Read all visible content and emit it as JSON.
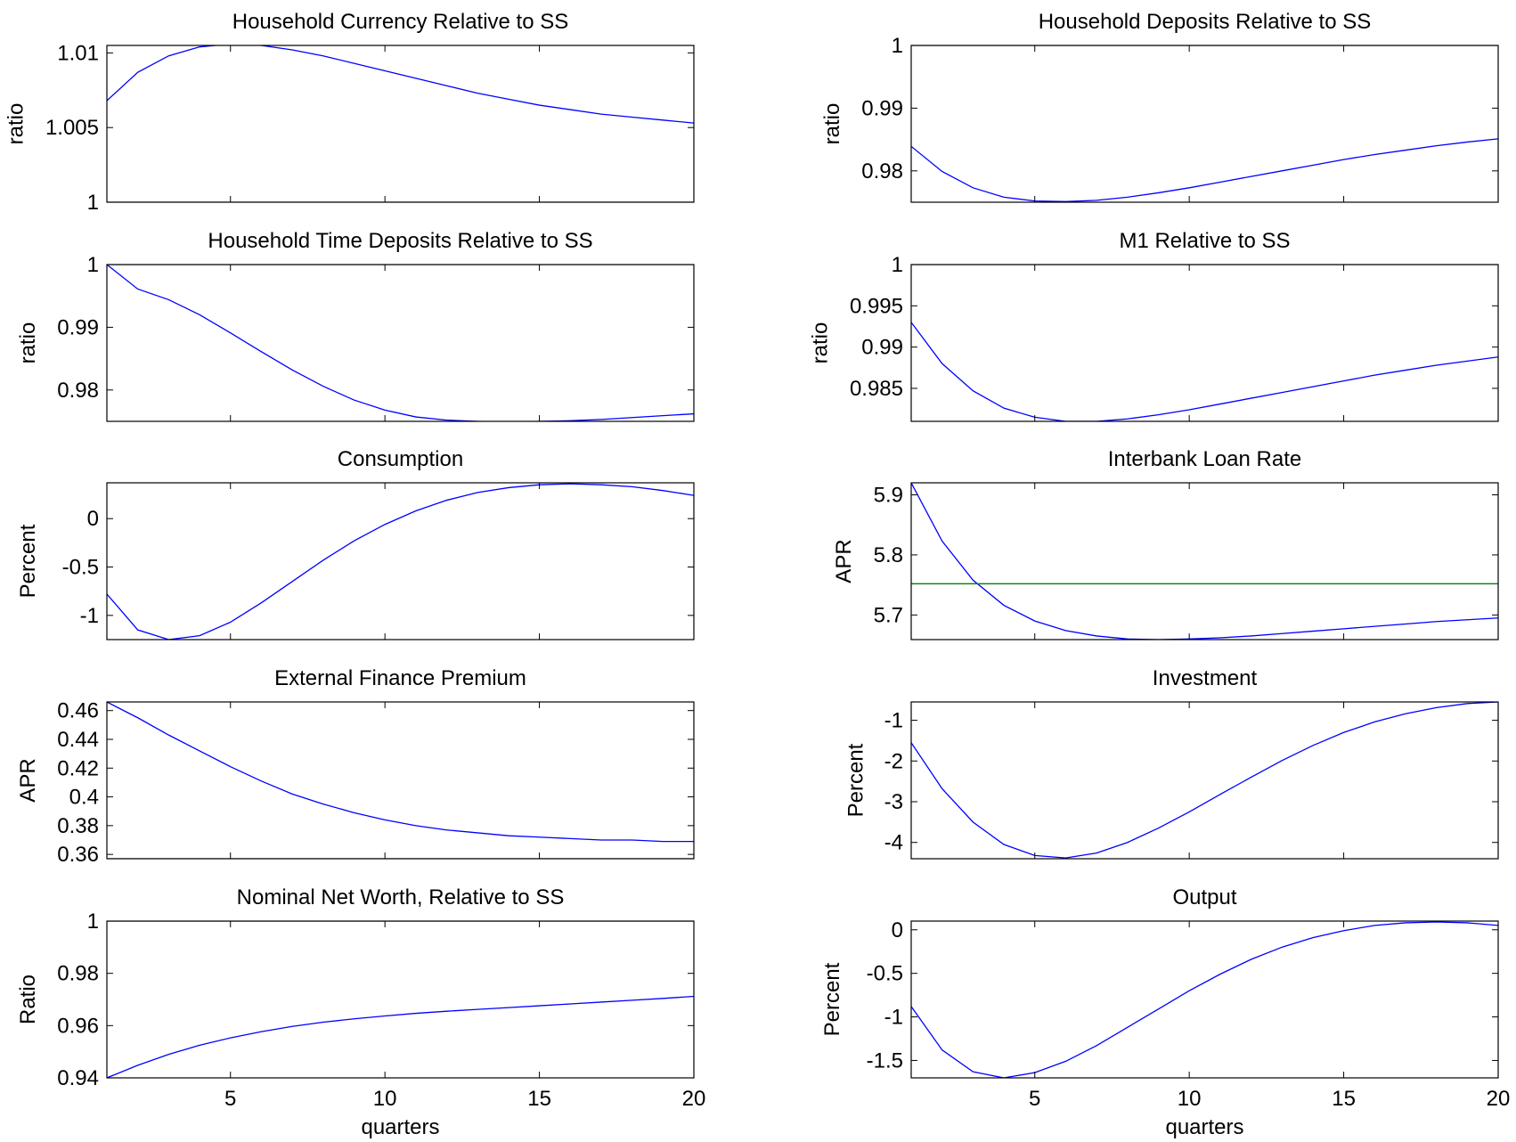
{
  "chart_data": [
    {
      "type": "line",
      "title": "Household Currency Relative to SS",
      "ylabel": "ratio",
      "xlabel": "",
      "xlim": [
        1,
        20
      ],
      "ylim": [
        1.0,
        1.0105
      ],
      "xticks": [
        5,
        10,
        15,
        20
      ],
      "yticks": [
        1,
        1.005,
        1.01
      ],
      "ytick_labels": [
        "1",
        "1.005",
        "1.01"
      ],
      "show_xtick_labels": false,
      "series": [
        {
          "color": "#0000ff",
          "x": [
            1,
            2,
            3,
            4,
            5,
            6,
            7,
            8,
            9,
            10,
            11,
            12,
            13,
            14,
            15,
            16,
            17,
            18,
            19,
            20
          ],
          "values": [
            1.0068,
            1.0087,
            1.0098,
            1.0104,
            1.0106,
            1.0105,
            1.0102,
            1.0098,
            1.0093,
            1.0088,
            1.0083,
            1.0078,
            1.0073,
            1.0069,
            1.0065,
            1.0062,
            1.0059,
            1.0057,
            1.0055,
            1.0053
          ]
        },
        {
          "color": "#008000",
          "x": [
            1,
            20
          ],
          "values": [
            1.0,
            1.0
          ]
        }
      ]
    },
    {
      "type": "line",
      "title": "Household Deposits Relative to SS",
      "ylabel": "ratio",
      "xlabel": "",
      "xlim": [
        1,
        20
      ],
      "ylim": [
        0.975,
        1.0
      ],
      "xticks": [
        5,
        10,
        15,
        20
      ],
      "yticks": [
        0.98,
        0.99,
        1
      ],
      "ytick_labels": [
        "0.98",
        "0.99",
        "1"
      ],
      "show_xtick_labels": false,
      "series": [
        {
          "color": "#0000ff",
          "x": [
            1,
            2,
            3,
            4,
            5,
            6,
            7,
            8,
            9,
            10,
            11,
            12,
            13,
            14,
            15,
            16,
            17,
            18,
            19,
            20
          ],
          "values": [
            0.9839,
            0.9799,
            0.9773,
            0.9758,
            0.9752,
            0.9751,
            0.9753,
            0.9758,
            0.9765,
            0.9773,
            0.9782,
            0.9791,
            0.98,
            0.9809,
            0.9818,
            0.9826,
            0.9833,
            0.984,
            0.9846,
            0.9851
          ]
        },
        {
          "color": "#008000",
          "x": [
            1,
            20
          ],
          "values": [
            1.0,
            1.0
          ]
        }
      ]
    },
    {
      "type": "line",
      "title": "Household Time Deposits Relative to SS",
      "ylabel": "ratio",
      "xlabel": "",
      "xlim": [
        1,
        20
      ],
      "ylim": [
        0.975,
        1.0
      ],
      "xticks": [
        5,
        10,
        15,
        20
      ],
      "yticks": [
        0.98,
        0.99,
        1
      ],
      "ytick_labels": [
        "0.98",
        "0.99",
        "1"
      ],
      "show_xtick_labels": false,
      "series": [
        {
          "color": "#0000ff",
          "x": [
            1,
            2,
            3,
            4,
            5,
            6,
            7,
            8,
            9,
            10,
            11,
            12,
            13,
            14,
            15,
            16,
            17,
            18,
            19,
            20
          ],
          "values": [
            1.0,
            0.9961,
            0.9944,
            0.992,
            0.9891,
            0.9861,
            0.9832,
            0.9806,
            0.9784,
            0.9768,
            0.9757,
            0.9752,
            0.975,
            0.9749,
            0.975,
            0.9751,
            0.9753,
            0.9756,
            0.9759,
            0.9762
          ]
        },
        {
          "color": "#008000",
          "x": [
            1,
            20
          ],
          "values": [
            1.0,
            1.0
          ]
        }
      ]
    },
    {
      "type": "line",
      "title": "M1 Relative to SS",
      "ylabel": "ratio",
      "xlabel": "",
      "xlim": [
        1,
        20
      ],
      "ylim": [
        0.981,
        1.0
      ],
      "xticks": [
        5,
        10,
        15,
        20
      ],
      "yticks": [
        0.985,
        0.99,
        0.995,
        1
      ],
      "ytick_labels": [
        "0.985",
        "0.99",
        "0.995",
        "1"
      ],
      "show_xtick_labels": false,
      "series": [
        {
          "color": "#0000ff",
          "x": [
            1,
            2,
            3,
            4,
            5,
            6,
            7,
            8,
            9,
            10,
            11,
            12,
            13,
            14,
            15,
            16,
            17,
            18,
            19,
            20
          ],
          "values": [
            0.993,
            0.988,
            0.9847,
            0.9826,
            0.9815,
            0.981,
            0.981,
            0.9813,
            0.9818,
            0.9824,
            0.9831,
            0.9838,
            0.9845,
            0.9852,
            0.9859,
            0.9866,
            0.9872,
            0.9878,
            0.9883,
            0.9888
          ]
        },
        {
          "color": "#008000",
          "x": [
            1,
            20
          ],
          "values": [
            1.0,
            1.0
          ]
        }
      ]
    },
    {
      "type": "line",
      "title": "Consumption",
      "ylabel": "Percent",
      "xlabel": "",
      "xlim": [
        1,
        20
      ],
      "ylim": [
        -1.25,
        0.37
      ],
      "xticks": [
        5,
        10,
        15,
        20
      ],
      "yticks": [
        -1,
        -0.5,
        0
      ],
      "ytick_labels": [
        "-1",
        "-0.5",
        "0"
      ],
      "show_xtick_labels": false,
      "series": [
        {
          "color": "#0000ff",
          "x": [
            1,
            2,
            3,
            4,
            5,
            6,
            7,
            8,
            9,
            10,
            11,
            12,
            13,
            14,
            15,
            16,
            17,
            18,
            19,
            20
          ],
          "values": [
            -0.78,
            -1.15,
            -1.25,
            -1.21,
            -1.07,
            -0.87,
            -0.65,
            -0.43,
            -0.23,
            -0.06,
            0.08,
            0.19,
            0.27,
            0.32,
            0.35,
            0.36,
            0.35,
            0.33,
            0.29,
            0.24
          ]
        }
      ]
    },
    {
      "type": "line",
      "title": "Interbank Loan Rate",
      "ylabel": "APR",
      "xlabel": "",
      "xlim": [
        1,
        20
      ],
      "ylim": [
        5.659,
        5.92
      ],
      "xticks": [
        5,
        10,
        15,
        20
      ],
      "yticks": [
        5.7,
        5.8,
        5.9
      ],
      "ytick_labels": [
        "5.7",
        "5.8",
        "5.9"
      ],
      "show_xtick_labels": false,
      "series": [
        {
          "color": "#0000ff",
          "x": [
            1,
            2,
            3,
            4,
            5,
            6,
            7,
            8,
            9,
            10,
            11,
            12,
            13,
            14,
            15,
            16,
            17,
            18,
            19,
            20
          ],
          "values": [
            5.92,
            5.823,
            5.758,
            5.716,
            5.69,
            5.674,
            5.665,
            5.66,
            5.659,
            5.66,
            5.662,
            5.665,
            5.669,
            5.673,
            5.677,
            5.681,
            5.685,
            5.689,
            5.692,
            5.695
          ]
        },
        {
          "color": "#008000",
          "x": [
            1,
            20
          ],
          "values": [
            5.752,
            5.752
          ]
        }
      ]
    },
    {
      "type": "line",
      "title": "External Finance Premium",
      "ylabel": "APR",
      "xlabel": "",
      "xlim": [
        1,
        20
      ],
      "ylim": [
        0.357,
        0.466
      ],
      "xticks": [
        5,
        10,
        15,
        20
      ],
      "yticks": [
        0.36,
        0.38,
        0.4,
        0.42,
        0.44,
        0.46
      ],
      "ytick_labels": [
        "0.36",
        "0.38",
        "0.4",
        "0.42",
        "0.44",
        "0.46"
      ],
      "show_xtick_labels": false,
      "series": [
        {
          "color": "#0000ff",
          "x": [
            1,
            2,
            3,
            4,
            5,
            6,
            7,
            8,
            9,
            10,
            11,
            12,
            13,
            14,
            15,
            16,
            17,
            18,
            19,
            20
          ],
          "values": [
            0.466,
            0.455,
            0.443,
            0.432,
            0.421,
            0.411,
            0.402,
            0.395,
            0.389,
            0.384,
            0.38,
            0.377,
            0.375,
            0.373,
            0.372,
            0.371,
            0.37,
            0.37,
            0.369,
            0.369
          ]
        },
        {
          "color": "#008000",
          "x": [
            1,
            20
          ],
          "values": [
            0.357,
            0.357
          ]
        }
      ]
    },
    {
      "type": "line",
      "title": "Investment",
      "ylabel": "Percent",
      "xlabel": "",
      "xlim": [
        1,
        20
      ],
      "ylim": [
        -4.4,
        -0.55
      ],
      "xticks": [
        5,
        10,
        15,
        20
      ],
      "yticks": [
        -4,
        -3,
        -2,
        -1
      ],
      "ytick_labels": [
        "-4",
        "-3",
        "-2",
        "-1"
      ],
      "show_xtick_labels": false,
      "series": [
        {
          "color": "#0000ff",
          "x": [
            1,
            2,
            3,
            4,
            5,
            6,
            7,
            8,
            9,
            10,
            11,
            12,
            13,
            14,
            15,
            16,
            17,
            18,
            19,
            20
          ],
          "values": [
            -1.55,
            -2.68,
            -3.5,
            -4.05,
            -4.32,
            -4.38,
            -4.26,
            -4.0,
            -3.65,
            -3.25,
            -2.82,
            -2.4,
            -1.99,
            -1.62,
            -1.3,
            -1.04,
            -0.84,
            -0.69,
            -0.59,
            -0.55
          ]
        }
      ]
    },
    {
      "type": "line",
      "title": "Nominal Net Worth, Relative to SS",
      "ylabel": "Ratio",
      "xlabel": "quarters",
      "xlim": [
        1,
        20
      ],
      "ylim": [
        0.94,
        1.0
      ],
      "xticks": [
        5,
        10,
        15,
        20
      ],
      "yticks": [
        0.94,
        0.96,
        0.98,
        1
      ],
      "ytick_labels": [
        "0.94",
        "0.96",
        "0.98",
        "1"
      ],
      "show_xtick_labels": true,
      "series": [
        {
          "color": "#0000ff",
          "x": [
            1,
            2,
            3,
            4,
            5,
            6,
            7,
            8,
            9,
            10,
            11,
            12,
            13,
            14,
            15,
            16,
            17,
            18,
            19,
            20
          ],
          "values": [
            0.94,
            0.9448,
            0.949,
            0.9525,
            0.9553,
            0.9577,
            0.9597,
            0.9613,
            0.9626,
            0.9637,
            0.9647,
            0.9655,
            0.9662,
            0.9669,
            0.9676,
            0.9683,
            0.969,
            0.9697,
            0.9704,
            0.9712
          ]
        },
        {
          "color": "#008000",
          "x": [
            1,
            20
          ],
          "values": [
            1.0,
            1.0
          ]
        }
      ]
    },
    {
      "type": "line",
      "title": "Output",
      "ylabel": "Percent",
      "xlabel": "quarters",
      "xlim": [
        1,
        20
      ],
      "ylim": [
        -1.7,
        0.1
      ],
      "xticks": [
        5,
        10,
        15,
        20
      ],
      "yticks": [
        -1.5,
        -1,
        -0.5,
        0
      ],
      "ytick_labels": [
        "-1.5",
        "-1",
        "-0.5",
        "0"
      ],
      "show_xtick_labels": true,
      "series": [
        {
          "color": "#0000ff",
          "x": [
            1,
            2,
            3,
            4,
            5,
            6,
            7,
            8,
            9,
            10,
            11,
            12,
            13,
            14,
            15,
            16,
            17,
            18,
            19,
            20
          ],
          "values": [
            -0.88,
            -1.38,
            -1.63,
            -1.7,
            -1.64,
            -1.51,
            -1.33,
            -1.12,
            -0.91,
            -0.7,
            -0.51,
            -0.34,
            -0.2,
            -0.09,
            -0.01,
            0.05,
            0.08,
            0.09,
            0.08,
            0.05
          ]
        }
      ]
    }
  ]
}
